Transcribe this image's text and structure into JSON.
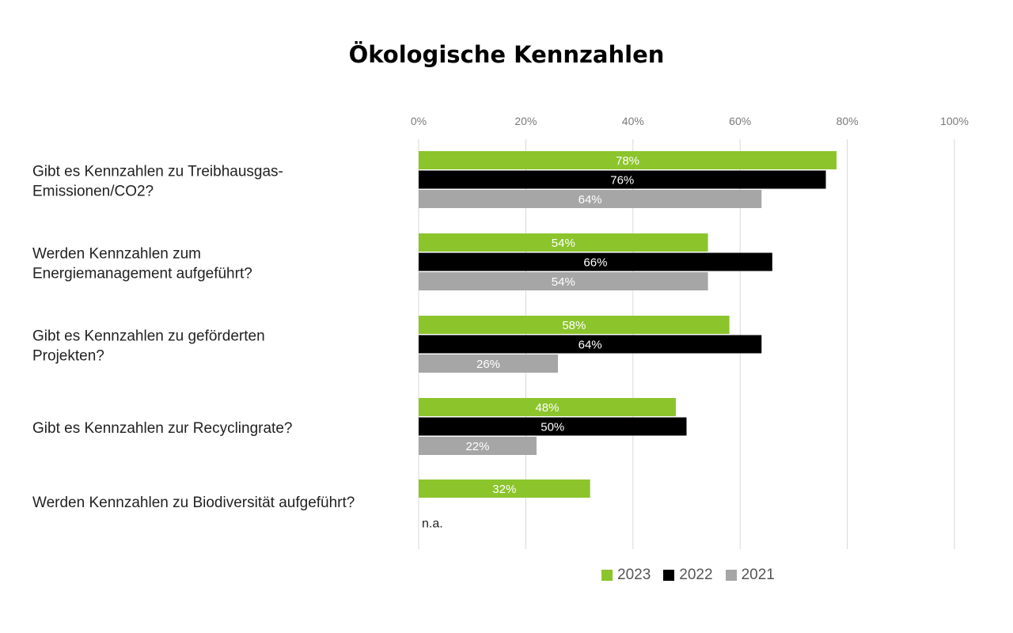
{
  "chart_data": {
    "type": "bar",
    "orientation": "horizontal",
    "title": "Ökologische Kennzahlen",
    "xlim": [
      0,
      100
    ],
    "x_ticks": [
      "0%",
      "20%",
      "40%",
      "60%",
      "80%",
      "100%"
    ],
    "x_tick_values": [
      0,
      20,
      40,
      60,
      80,
      100
    ],
    "grid": true,
    "legend_position": "bottom-right",
    "categories": [
      [
        "Gibt es Kennzahlen zu Treibhausgas-",
        "Emissionen/CO2?"
      ],
      [
        "Werden Kennzahlen zum",
        "Energiemanagement aufgeführt?"
      ],
      [
        "Gibt es Kennzahlen zu geförderten",
        "Projekten?"
      ],
      [
        "Gibt es Kennzahlen zur Recyclingrate?"
      ],
      [
        "Werden Kennzahlen zu Biodiversität aufgeführt?"
      ]
    ],
    "series": [
      {
        "name": "2023",
        "color": "#8cc42c",
        "values": [
          78,
          54,
          58,
          48,
          32
        ],
        "labels": [
          "78%",
          "54%",
          "58%",
          "48%",
          "32%"
        ]
      },
      {
        "name": "2022",
        "color": "#000000",
        "values": [
          76,
          66,
          64,
          50,
          null
        ],
        "labels": [
          "76%",
          "66%",
          "64%",
          "50%",
          null
        ]
      },
      {
        "name": "2021",
        "color": "#a6a6a6",
        "values": [
          64,
          54,
          26,
          22,
          null
        ],
        "labels": [
          "64%",
          "54%",
          "26%",
          "22%",
          null
        ]
      }
    ],
    "missing_label": "n.a."
  }
}
